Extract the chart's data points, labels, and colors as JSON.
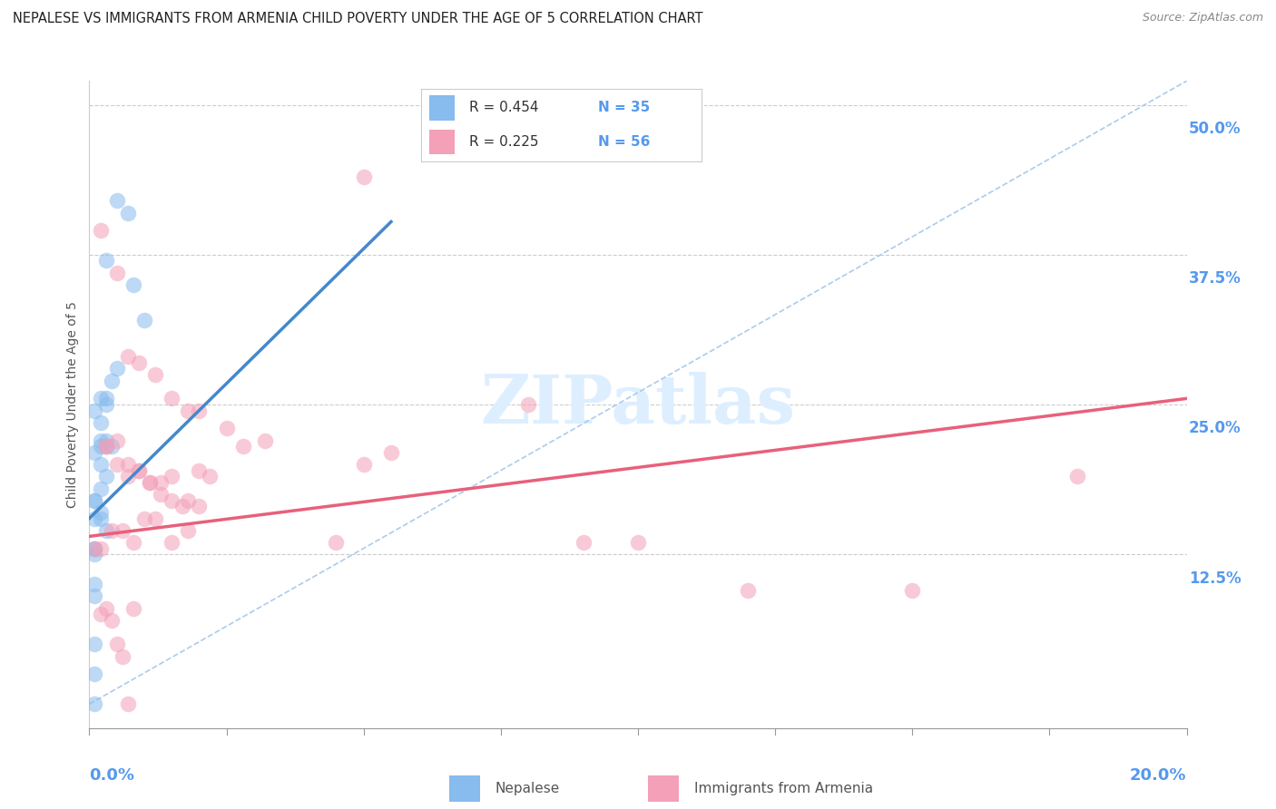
{
  "title": "NEPALESE VS IMMIGRANTS FROM ARMENIA CHILD POVERTY UNDER THE AGE OF 5 CORRELATION CHART",
  "source": "Source: ZipAtlas.com",
  "ylabel": "Child Poverty Under the Age of 5",
  "xmin": 0.0,
  "xmax": 0.2,
  "ymin": 0.0,
  "ymax": 0.52,
  "R1": 0.454,
  "N1": 35,
  "R2": 0.225,
  "N2": 56,
  "color1": "#88BBEE",
  "color2": "#F4A0B8",
  "line_color1": "#4488CC",
  "line_color2": "#E8607A",
  "diagonal_color": "#AACCEE",
  "background_color": "#FFFFFF",
  "title_color": "#222222",
  "axis_label_color": "#5599EE",
  "watermark_color": "#DDEEFF",
  "legend_label1": "Nepalese",
  "legend_label2": "Immigrants from Armenia",
  "nepalese_x": [
    0.005,
    0.007,
    0.003,
    0.008,
    0.01,
    0.005,
    0.004,
    0.003,
    0.002,
    0.001,
    0.002,
    0.003,
    0.004,
    0.003,
    0.002,
    0.002,
    0.003,
    0.001,
    0.002,
    0.003,
    0.001,
    0.001,
    0.002,
    0.003,
    0.002,
    0.001,
    0.002,
    0.001,
    0.001,
    0.001,
    0.001,
    0.001,
    0.001,
    0.001,
    0.001
  ],
  "nepalese_y": [
    0.42,
    0.41,
    0.37,
    0.35,
    0.32,
    0.28,
    0.27,
    0.255,
    0.255,
    0.245,
    0.235,
    0.22,
    0.215,
    0.25,
    0.22,
    0.215,
    0.215,
    0.21,
    0.2,
    0.19,
    0.17,
    0.155,
    0.155,
    0.145,
    0.18,
    0.17,
    0.16,
    0.13,
    0.13,
    0.125,
    0.1,
    0.09,
    0.025,
    0.0,
    0.05
  ],
  "armenia_x": [
    0.002,
    0.005,
    0.007,
    0.009,
    0.012,
    0.015,
    0.018,
    0.02,
    0.025,
    0.028,
    0.032,
    0.003,
    0.005,
    0.007,
    0.009,
    0.011,
    0.013,
    0.015,
    0.018,
    0.02,
    0.022,
    0.003,
    0.005,
    0.007,
    0.009,
    0.011,
    0.013,
    0.015,
    0.017,
    0.02,
    0.002,
    0.004,
    0.006,
    0.008,
    0.01,
    0.012,
    0.015,
    0.018,
    0.05,
    0.055,
    0.08,
    0.09,
    0.1,
    0.12,
    0.15,
    0.18,
    0.001,
    0.002,
    0.003,
    0.004,
    0.005,
    0.006,
    0.007,
    0.008,
    0.045,
    0.05
  ],
  "armenia_y": [
    0.395,
    0.36,
    0.29,
    0.285,
    0.275,
    0.255,
    0.245,
    0.245,
    0.23,
    0.215,
    0.22,
    0.215,
    0.2,
    0.2,
    0.195,
    0.185,
    0.185,
    0.19,
    0.17,
    0.165,
    0.19,
    0.215,
    0.22,
    0.19,
    0.195,
    0.185,
    0.175,
    0.17,
    0.165,
    0.195,
    0.13,
    0.145,
    0.145,
    0.135,
    0.155,
    0.155,
    0.135,
    0.145,
    0.2,
    0.21,
    0.25,
    0.135,
    0.135,
    0.095,
    0.095,
    0.19,
    0.13,
    0.075,
    0.08,
    0.07,
    0.05,
    0.04,
    0.0,
    0.08,
    0.135,
    0.44
  ]
}
